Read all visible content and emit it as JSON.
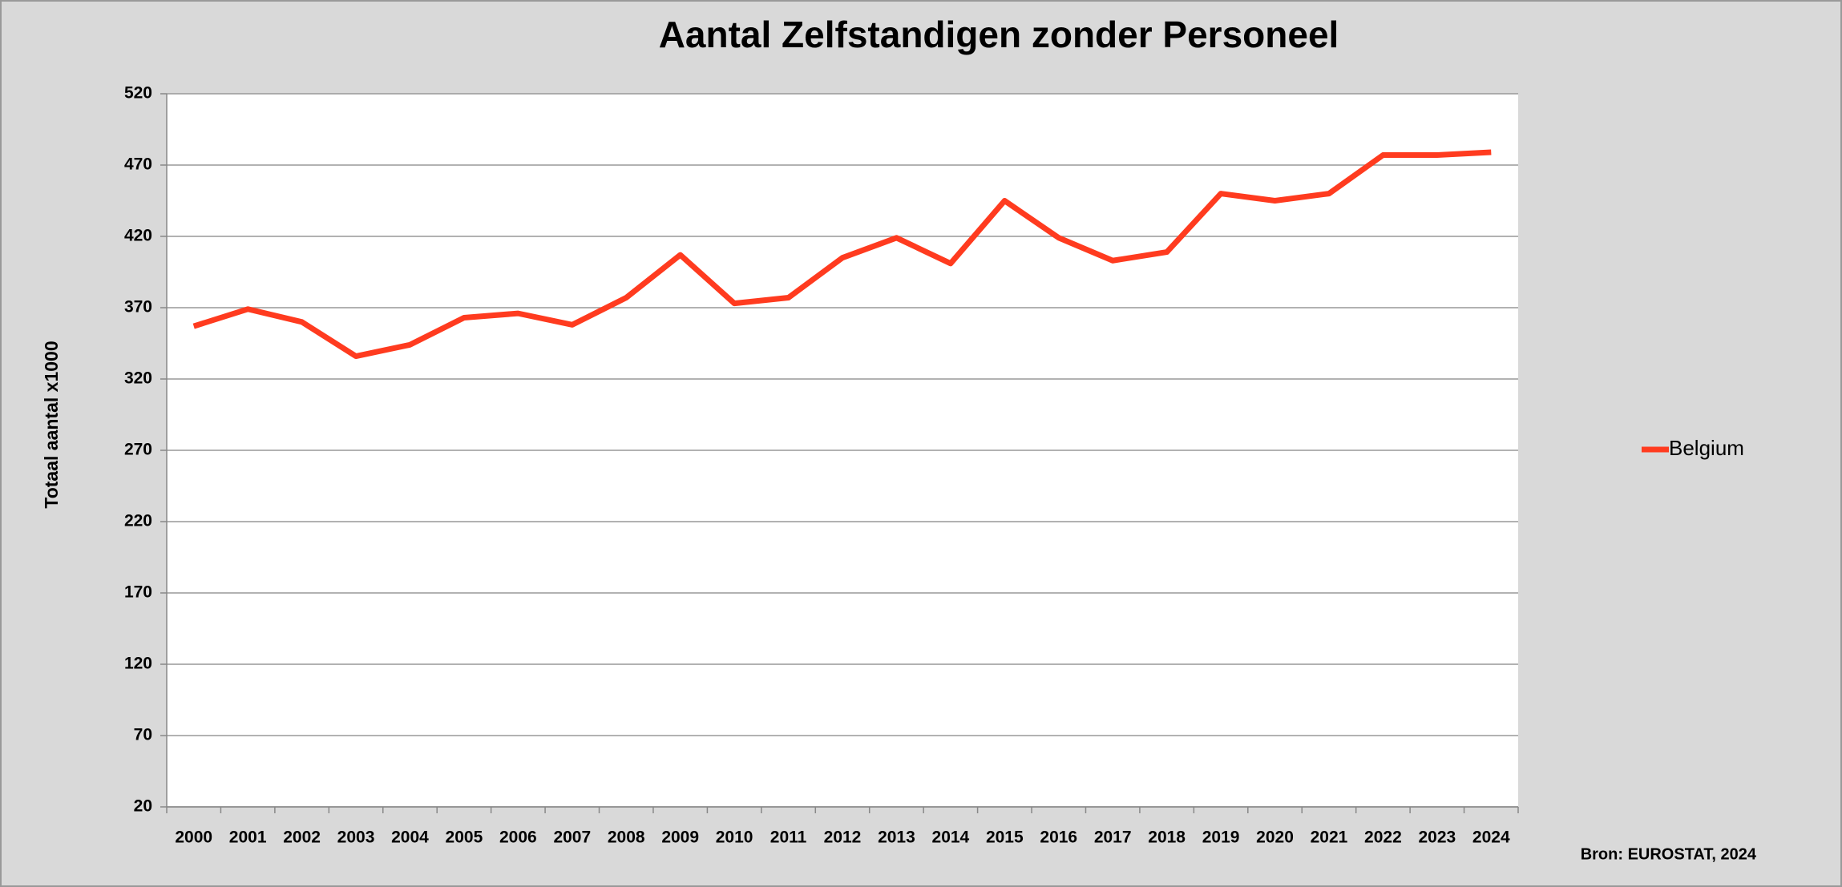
{
  "chart_data": {
    "type": "line",
    "title": "Aantal Zelfstandigen zonder Personeel",
    "y_label": "Totaal aantal x1000",
    "source": "Bron: EUROSTAT, 2024",
    "categories": [
      "2000",
      "2001",
      "2002",
      "2003",
      "2004",
      "2005",
      "2006",
      "2007",
      "2008",
      "2009",
      "2010",
      "2011",
      "2012",
      "2013",
      "2014",
      "2015",
      "2016",
      "2017",
      "2018",
      "2019",
      "2020",
      "2021",
      "2022",
      "2023",
      "2024"
    ],
    "series": [
      {
        "name": "Belgium",
        "color": "#ff3b1f",
        "values": [
          357,
          369,
          360,
          336,
          344,
          363,
          366,
          358,
          377,
          407,
          373,
          377,
          405,
          419,
          401,
          445,
          419,
          403,
          409,
          450,
          445,
          450,
          477,
          477,
          479
        ]
      }
    ],
    "ylim": [
      20,
      520
    ],
    "yticks": [
      20,
      70,
      120,
      170,
      220,
      270,
      320,
      370,
      420,
      470,
      520
    ],
    "grid": true,
    "legend": "right"
  }
}
